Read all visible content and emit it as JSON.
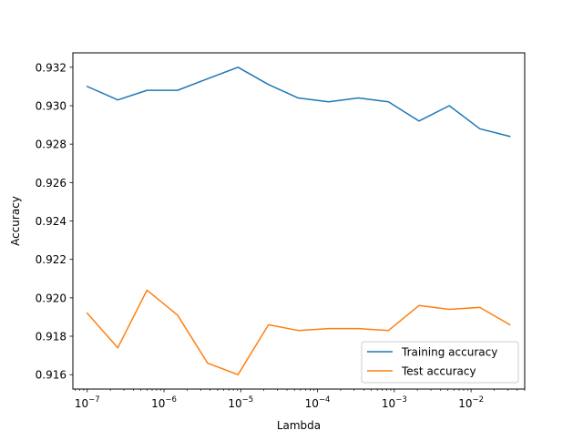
{
  "chart_data": {
    "type": "line",
    "title": "",
    "xlabel": "Lambda",
    "ylabel": "Accuracy",
    "xscale": "log",
    "xlim": [
      6.5e-08,
      0.05
    ],
    "ylim": [
      0.91525,
      0.93275
    ],
    "grid": false,
    "legend_position": "lower-right",
    "x": [
      1e-07,
      2.5e-07,
      6e-07,
      1.5e-06,
      3.7e-06,
      9.2e-06,
      2.3e-05,
      5.6e-05,
      0.00014,
      0.00034,
      0.00084,
      0.0021,
      0.0052,
      0.013,
      0.032
    ],
    "series": [
      {
        "name": "Training accuracy",
        "color": "#1f77b4",
        "values": [
          0.931,
          0.9303,
          0.9308,
          0.9308,
          0.9314,
          0.932,
          0.9311,
          0.9304,
          0.9302,
          0.9304,
          0.9302,
          0.9292,
          0.93,
          0.9288,
          0.9284
        ]
      },
      {
        "name": "Test accuracy",
        "color": "#ff7f0e",
        "values": [
          0.9192,
          0.9174,
          0.9204,
          0.9191,
          0.9166,
          0.916,
          0.9186,
          0.9183,
          0.9184,
          0.9184,
          0.9183,
          0.9196,
          0.9194,
          0.9195,
          0.9186
        ]
      }
    ],
    "yticks": [
      {
        "value": 0.916,
        "label": "0.916"
      },
      {
        "value": 0.918,
        "label": "0.918"
      },
      {
        "value": 0.92,
        "label": "0.920"
      },
      {
        "value": 0.922,
        "label": "0.922"
      },
      {
        "value": 0.924,
        "label": "0.924"
      },
      {
        "value": 0.926,
        "label": "0.926"
      },
      {
        "value": 0.928,
        "label": "0.928"
      },
      {
        "value": 0.93,
        "label": "0.930"
      },
      {
        "value": 0.932,
        "label": "0.932"
      }
    ],
    "xticks": [
      {
        "exp": -7,
        "base": "10",
        "sup": "−7"
      },
      {
        "exp": -6,
        "base": "10",
        "sup": "−6"
      },
      {
        "exp": -5,
        "base": "10",
        "sup": "−5"
      },
      {
        "exp": -4,
        "base": "10",
        "sup": "−4"
      },
      {
        "exp": -3,
        "base": "10",
        "sup": "−3"
      },
      {
        "exp": -2,
        "base": "10",
        "sup": "−2"
      }
    ]
  }
}
